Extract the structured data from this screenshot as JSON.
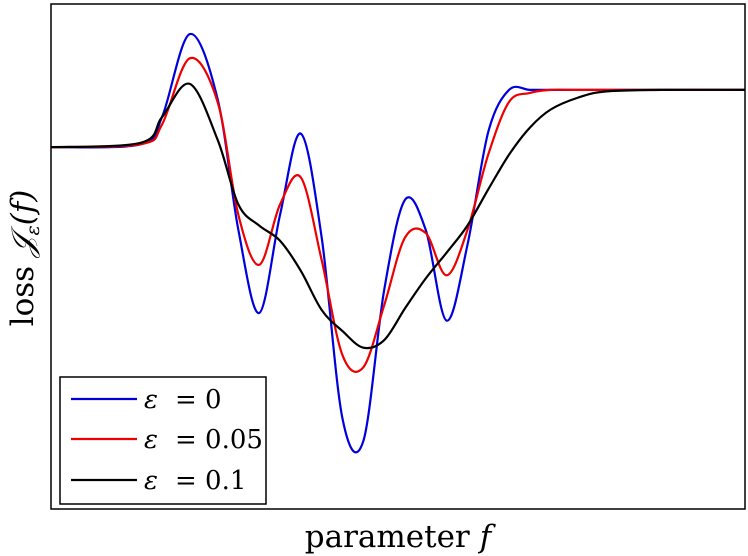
{
  "chart_data": {
    "type": "line",
    "title": "",
    "xlabel": {
      "text": "parameter",
      "var": "f"
    },
    "ylabel": {
      "text": "loss",
      "symbol": "𝒥",
      "subscript": "ε",
      "arg": "(f)"
    },
    "x_ticks": "none",
    "y_ticks": "none",
    "grid": false,
    "legend": {
      "position": "bottom-left"
    },
    "x": [
      0.0,
      0.13,
      0.16,
      0.2,
      0.24,
      0.27,
      0.3,
      0.33,
      0.36,
      0.39,
      0.42,
      0.45,
      0.48,
      0.51,
      0.54,
      0.57,
      0.6,
      0.63,
      0.66,
      0.69,
      0.72,
      0.76,
      0.8,
      0.88,
      1.0
    ],
    "series": [
      {
        "name": "ε = 0",
        "label": {
          "symbol": "ε",
          "eq": "= 0"
        },
        "color": "#0000dd",
        "values": [
          0.0,
          0.02,
          0.2,
          0.75,
          0.32,
          -0.55,
          -1.1,
          -0.45,
          0.09,
          -0.6,
          -1.8,
          -1.95,
          -0.95,
          -0.35,
          -0.55,
          -1.15,
          -0.65,
          0.1,
          0.38,
          0.38,
          0.38,
          0.38,
          0.38,
          0.38,
          0.38
        ]
      },
      {
        "name": "ε = 0.05",
        "label": {
          "symbol": "ε",
          "eq": "= 0.05"
        },
        "color": "#ee0000",
        "values": [
          0.0,
          0.02,
          0.15,
          0.59,
          0.3,
          -0.45,
          -0.78,
          -0.38,
          -0.2,
          -0.75,
          -1.38,
          -1.46,
          -1.05,
          -0.6,
          -0.57,
          -0.85,
          -0.55,
          -0.05,
          0.3,
          0.36,
          0.38,
          0.38,
          0.38,
          0.38,
          0.38
        ]
      },
      {
        "name": "ε = 0.1",
        "label": {
          "symbol": "ε",
          "eq": "= 0.1"
        },
        "color": "#000000",
        "values": [
          0.0,
          0.03,
          0.2,
          0.42,
          0.05,
          -0.38,
          -0.52,
          -0.62,
          -0.82,
          -1.08,
          -1.22,
          -1.33,
          -1.28,
          -1.07,
          -0.87,
          -0.7,
          -0.52,
          -0.28,
          -0.05,
          0.13,
          0.25,
          0.33,
          0.37,
          0.38,
          0.38
        ]
      }
    ],
    "xlim": [
      0,
      1
    ],
    "ylim": [
      -2.4,
      0.95
    ]
  }
}
